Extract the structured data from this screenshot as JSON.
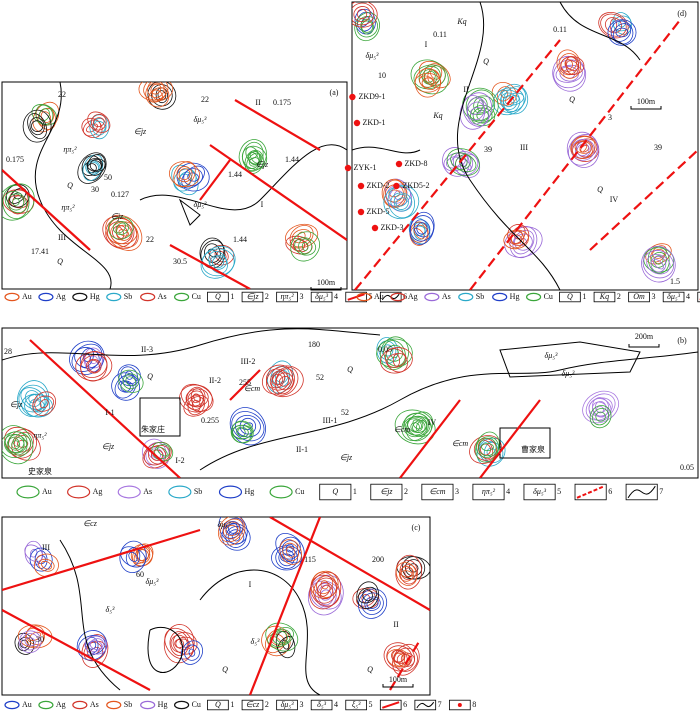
{
  "panels": [
    {
      "label": "(a)",
      "scale": "100m",
      "zones": [
        "I",
        "II",
        "III"
      ],
      "units": [
        "∈jz",
        "∈jz",
        "∈jz",
        "Q",
        "Q",
        "ηπ₅²",
        "ηπ₅²",
        "δμ₅³",
        "δμ₅³"
      ],
      "values": [
        "0.175",
        "22",
        "22",
        "1.44",
        "1.44",
        "30",
        "50",
        "0.127",
        "0.175",
        "17.41",
        "30.5",
        "1.44",
        "22"
      ]
    },
    {
      "label": "(d)",
      "scale": "100m",
      "zones": [
        "I",
        "II",
        "III",
        "IV"
      ],
      "units": [
        "Kq",
        "Kq",
        "Q",
        "Q",
        "Q",
        "δμ₅³"
      ],
      "drillholes": [
        "ZKD9-1",
        "ZKD-1",
        "ZKD-8",
        "ZYK-1",
        "ZKD-2",
        "ZKD5-2",
        "ZKD-5",
        "ZKD-3"
      ],
      "values": [
        "0.11",
        "10",
        "39",
        "39",
        "0.11",
        "3",
        "1.5"
      ]
    },
    {
      "label": "(b)",
      "scale": "200m",
      "zones": [
        "II-3",
        "II-2",
        "III-2",
        "III-1",
        "I-1",
        "I-2",
        "II-1",
        "IV"
      ],
      "places": [
        "朱家庄",
        "曹家泉",
        "史家泉"
      ],
      "units": [
        "∈jz",
        "∈jz",
        "∈jz",
        "∈cm",
        "∈cm",
        "∈cm",
        "Q",
        "Q",
        "ηπ₅²",
        "δμ₅³",
        "δμ₅³"
      ],
      "values": [
        "28",
        "0.05",
        "255",
        "52",
        "180",
        "0.255",
        "0.05",
        "52"
      ]
    },
    {
      "label": "(c)",
      "scale": "100m",
      "zones": [
        "I",
        "II",
        "III"
      ],
      "units": [
        "∈cz",
        "δμ₅³",
        "δμ₅³",
        "δ₅³",
        "δ₅³",
        "Q",
        "Q"
      ],
      "values": [
        "200",
        "115",
        "60",
        "30"
      ]
    }
  ],
  "legends": [
    {
      "elements": [
        {
          "name": "Au",
          "color": "#e4561e"
        },
        {
          "name": "Ag",
          "color": "#1f3fc8"
        },
        {
          "name": "Hg",
          "color": "#111111"
        },
        {
          "name": "Sb",
          "color": "#2aa9c9"
        },
        {
          "name": "As",
          "color": "#d2342a"
        },
        {
          "name": "Cu",
          "color": "#3aa63a"
        }
      ],
      "keys": [
        {
          "symbol": "Q",
          "number": 1
        },
        {
          "symbol": "∈jz",
          "number": 2
        },
        {
          "symbol": "ηπ₅²",
          "number": 3
        },
        {
          "symbol": "δμ₅³",
          "number": 4
        },
        {
          "number": 5
        },
        {
          "number": 6
        }
      ]
    },
    {
      "elements": [
        {
          "name": "Au",
          "color": "#e4561e"
        },
        {
          "name": "Ag",
          "color": "#d2342a"
        },
        {
          "name": "As",
          "color": "#9a6ad8"
        },
        {
          "name": "Sb",
          "color": "#2aa9c9"
        },
        {
          "name": "Hg",
          "color": "#1f3fc8"
        },
        {
          "name": "Cu",
          "color": "#3aa63a"
        }
      ],
      "keys": [
        {
          "symbol": "Q",
          "number": 1
        },
        {
          "symbol": "Kq",
          "number": 2
        },
        {
          "symbol": "Om",
          "number": 3
        },
        {
          "symbol": "δμ₅³",
          "number": 4
        },
        {
          "number": 5
        },
        {
          "number": 6
        },
        {
          "number": 7
        }
      ]
    },
    {
      "elements": [
        {
          "name": "Au",
          "color": "#3aa63a"
        },
        {
          "name": "Ag",
          "color": "#d2342a"
        },
        {
          "name": "As",
          "color": "#a878e0"
        },
        {
          "name": "Sb",
          "color": "#2aa9c9"
        },
        {
          "name": "Hg",
          "color": "#1f3fc8"
        },
        {
          "name": "Cu",
          "color": "#3aa63a"
        }
      ],
      "keys": [
        {
          "symbol": "Q",
          "number": 1
        },
        {
          "symbol": "∈jz",
          "number": 2
        },
        {
          "symbol": "∈cm",
          "number": 3
        },
        {
          "symbol": "ηπ₅²",
          "number": 4
        },
        {
          "symbol": "δμ₅³",
          "number": 5
        },
        {
          "number": 6
        },
        {
          "number": 7
        }
      ]
    },
    {
      "elements": [
        {
          "name": "Au",
          "color": "#1f3fc8"
        },
        {
          "name": "Ag",
          "color": "#3aa63a"
        },
        {
          "name": "As",
          "color": "#d2342a"
        },
        {
          "name": "Sb",
          "color": "#e4561e"
        },
        {
          "name": "Hg",
          "color": "#9a6ad8"
        },
        {
          "name": "Cu",
          "color": "#111111"
        }
      ],
      "keys": [
        {
          "symbol": "Q",
          "number": 1
        },
        {
          "symbol": "∈cz",
          "number": 2
        },
        {
          "symbol": "δμ₅³",
          "number": 3
        },
        {
          "symbol": "δ₅³",
          "number": 4
        },
        {
          "symbol": "ξ₅³",
          "number": 5
        },
        {
          "number": 6
        },
        {
          "number": 7
        },
        {
          "number": 8
        }
      ]
    }
  ]
}
